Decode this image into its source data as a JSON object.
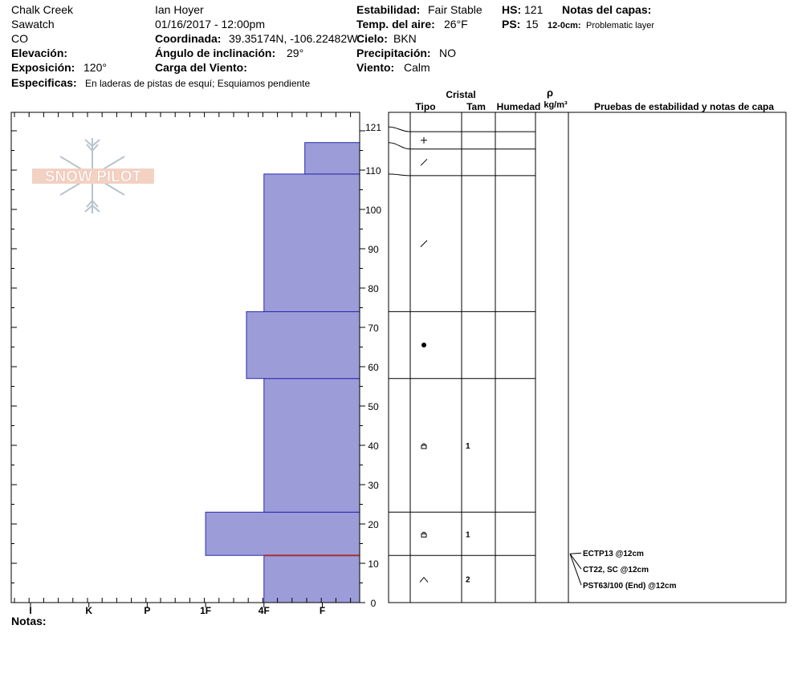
{
  "header": {
    "location": "Chalk Creek",
    "range": "Sawatch",
    "state": "CO",
    "observer": "Ian Hoyer",
    "datetime": "01/16/2017 - 12:00pm",
    "elevation_label": "Elevación:",
    "exposure_label": "Exposición:",
    "exposure_value": "120°",
    "specifics_label": "Especificas:",
    "specifics_value": "En laderas de pistas de esquí; Esquiamos pendiente",
    "coordinate_label": "Coordinada:",
    "coordinate_value": "39.35174N, -106.22482W",
    "slope_label": "Ángulo de inclinación:",
    "slope_value": "29°",
    "wind_load_label": "Carga del Viento:",
    "stability_label": "Estabilidad:",
    "stability_value": "Fair Stable",
    "air_temp_label": "Temp. del aire:",
    "air_temp_value": "26°F",
    "sky_label": "Cielo:",
    "sky_value": "BKN",
    "precip_label": "Precipitación:",
    "precip_value": "NO",
    "wind_label": "Viento:",
    "wind_value": "Calm",
    "hs_label": "HS:",
    "hs_value": "121",
    "ps_label": "PS:",
    "ps_value": "15",
    "layer_notes_label": "Notas del capas:",
    "layer_note_range": "12-0cm:",
    "layer_note_text": "Problematic layer"
  },
  "logo_text": "SNOW PILOT",
  "columns": {
    "crystal": "Cristal",
    "type": "Tipo",
    "size": "Tam",
    "moisture": "Humedad",
    "rho": "ρ",
    "density_unit": "kg/m³",
    "tests": "Pruebas de estabilidad y notas de capa"
  },
  "notes_label": "Notas:",
  "colors": {
    "bar_fill": "#9c9cd8",
    "bar_stroke": "#2a2ab0",
    "problem_line": "#a83030"
  },
  "chart_data": {
    "type": "bar",
    "orientation": "horizontal-profile",
    "y_unit": "cm",
    "ylim": [
      0,
      121
    ],
    "yticks": [
      0,
      10,
      20,
      30,
      40,
      50,
      60,
      70,
      80,
      90,
      100,
      110,
      121
    ],
    "hardness_scale": [
      "I",
      "K",
      "P",
      "1F",
      "4F",
      "F"
    ],
    "layers": [
      {
        "bottom": 0,
        "top": 12,
        "hardness_index": 4,
        "grain": "depth-hoar",
        "size": "2"
      },
      {
        "bottom": 12,
        "top": 23,
        "hardness_index": 3,
        "grain": "faceted",
        "size": "1"
      },
      {
        "bottom": 23,
        "top": 57,
        "hardness_index": 4,
        "grain": "faceted",
        "size": "1"
      },
      {
        "bottom": 57,
        "top": 74,
        "hardness_index": 3.7,
        "grain": "rounded",
        "size": ""
      },
      {
        "bottom": 74,
        "top": 109,
        "hardness_index": 4,
        "grain": "decomposing",
        "size": ""
      },
      {
        "bottom": 109,
        "top": 117,
        "hardness_index": 4.7,
        "grain": "decomposing",
        "size": ""
      },
      {
        "bottom": 117,
        "top": 121,
        "hardness_index": 5.7,
        "grain": "new-snow",
        "size": ""
      }
    ],
    "problem_layer_depth": 12,
    "tests": [
      "ECTP13 @12cm",
      "CT22, SC @12cm",
      "PST63/100 (End) @12cm"
    ]
  }
}
